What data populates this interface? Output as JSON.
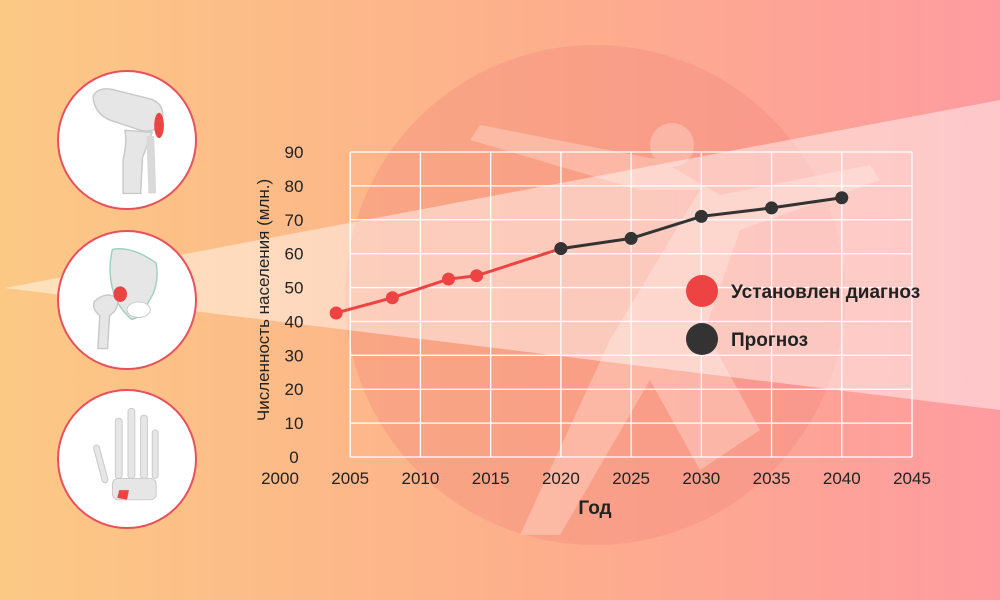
{
  "colors": {
    "bg_left": "#fcc985",
    "bg_right": "#fe9ba0",
    "confirmed": "#ee4343",
    "forecast": "#333333",
    "grid": "#ffffff",
    "icon_border": "#e8505b"
  },
  "icons": [
    "knee-joint-icon",
    "hip-joint-icon",
    "hand-joint-icon"
  ],
  "chart_data": {
    "type": "line",
    "xlabel": "Год",
    "ylabel": "Численность населения (млн.)",
    "xlim": [
      2000,
      2045
    ],
    "ylim": [
      0,
      90
    ],
    "x_ticks": [
      "2000",
      "2005",
      "2010",
      "2015",
      "2020",
      "2025",
      "2030",
      "2035",
      "2040",
      "2045"
    ],
    "y_ticks": [
      "0",
      "10",
      "20",
      "30",
      "40",
      "50",
      "60",
      "70",
      "80",
      "90"
    ],
    "grid": true,
    "legend_position": "right",
    "series": [
      {
        "name": "Установлен диагноз",
        "color": "#ee4343",
        "x": [
          2004,
          2008,
          2012,
          2014,
          2020
        ],
        "y": [
          42.5,
          47,
          52.5,
          53.5,
          61.5
        ]
      },
      {
        "name": "Прогноз",
        "color": "#333333",
        "x": [
          2020,
          2025,
          2030,
          2035,
          2040
        ],
        "y": [
          61.5,
          64.5,
          71,
          73.5,
          76.5
        ]
      }
    ]
  }
}
